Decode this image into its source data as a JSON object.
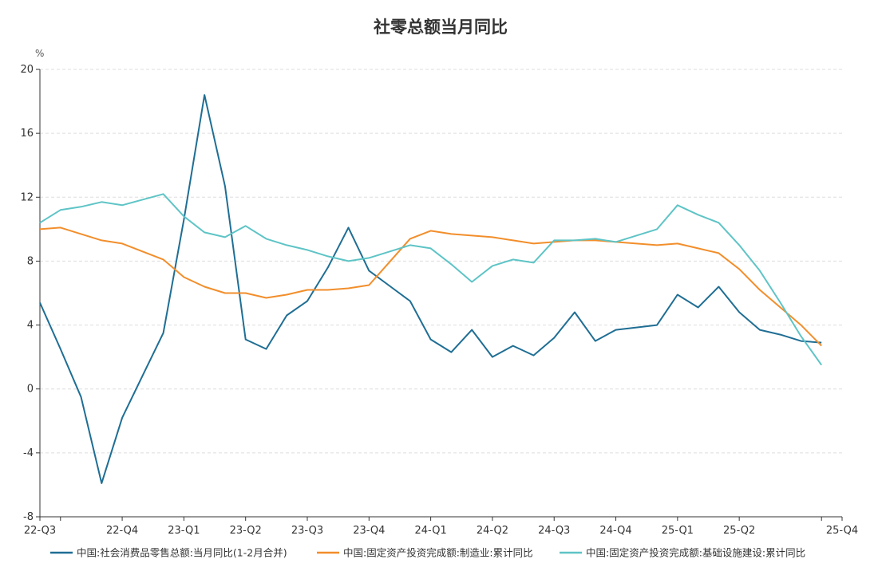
{
  "chart_data": {
    "type": "line",
    "title": "社零总额当月同比",
    "ylabel": "%",
    "xlabel": "",
    "ylim": [
      -8,
      20
    ],
    "yticks": [
      20,
      16,
      12,
      8,
      4,
      0,
      -4,
      -8
    ],
    "grid": true,
    "legend_position": "bottom",
    "x": [
      "2022-08",
      "2022-09",
      "2022-10",
      "2022-11",
      "2022-12",
      "2023-01",
      "2023-02",
      "2023-03",
      "2023-04",
      "2023-05",
      "2023-06",
      "2023-07",
      "2023-08",
      "2023-09",
      "2023-10",
      "2023-11",
      "2023-12",
      "2024-01",
      "2024-02",
      "2024-03",
      "2024-04",
      "2024-05",
      "2024-06",
      "2024-07",
      "2024-08",
      "2024-09",
      "2024-10",
      "2024-11",
      "2024-12",
      "2025-01",
      "2025-02",
      "2025-03",
      "2025-04",
      "2025-05",
      "2025-06",
      "2025-07",
      "2025-08",
      "2025-09",
      "2025-10",
      "2025-11"
    ],
    "xtick_labels": [
      {
        "label": "22-Q3",
        "x": "2022-08"
      },
      {
        "label": "22-Q4",
        "x": "2022-12"
      },
      {
        "label": "23-Q1",
        "x": "2023-03"
      },
      {
        "label": "23-Q2",
        "x": "2023-06"
      },
      {
        "label": "23-Q3",
        "x": "2023-09"
      },
      {
        "label": "23-Q4",
        "x": "2023-12"
      },
      {
        "label": "24-Q1",
        "x": "2024-03"
      },
      {
        "label": "24-Q2",
        "x": "2024-06"
      },
      {
        "label": "24-Q3",
        "x": "2024-09"
      },
      {
        "label": "24-Q4",
        "x": "2024-12"
      },
      {
        "label": "25-Q1",
        "x": "2025-03"
      },
      {
        "label": "25-Q2",
        "x": "2025-06"
      },
      {
        "label": "25-Q4",
        "x": "2025-11"
      }
    ],
    "minor_ticks": [
      "2022-09",
      "2025-10"
    ],
    "series": [
      {
        "name": "中国:社会消费品零售总额:当月同比(1-2月合并)",
        "color": "#1f6e94",
        "values": [
          5.4,
          2.5,
          -0.5,
          -5.9,
          -1.8,
          null,
          3.5,
          10.6,
          18.4,
          12.7,
          3.1,
          2.5,
          4.6,
          5.5,
          7.6,
          10.1,
          7.4,
          null,
          5.5,
          3.1,
          2.3,
          3.7,
          2.0,
          2.7,
          2.1,
          3.2,
          4.8,
          3.0,
          3.7,
          null,
          4.0,
          5.9,
          5.1,
          6.4,
          4.8,
          3.7,
          3.4,
          3.0,
          2.9,
          null
        ]
      },
      {
        "name": "中国:固定资产投资完成额:制造业:累计同比",
        "color": "#f28e2b",
        "values": [
          10.0,
          10.1,
          9.7,
          9.3,
          9.1,
          null,
          8.1,
          7.0,
          6.4,
          6.0,
          6.0,
          5.7,
          5.9,
          6.2,
          6.2,
          6.3,
          6.5,
          null,
          9.4,
          9.9,
          9.7,
          9.6,
          9.5,
          9.3,
          9.1,
          9.2,
          9.3,
          9.3,
          9.2,
          null,
          9.0,
          9.1,
          8.8,
          8.5,
          7.5,
          6.2,
          5.1,
          4.0,
          2.7,
          null
        ]
      },
      {
        "name": "中国:固定资产投资完成额:基础设施建设:累计同比",
        "color": "#5ec4c6",
        "values": [
          10.4,
          11.2,
          11.4,
          11.7,
          11.5,
          null,
          12.2,
          10.8,
          9.8,
          9.5,
          10.2,
          9.4,
          9.0,
          8.7,
          8.3,
          8.0,
          8.2,
          null,
          9.0,
          8.8,
          7.8,
          6.7,
          7.7,
          8.1,
          7.9,
          9.3,
          9.3,
          9.4,
          9.2,
          null,
          10.0,
          11.5,
          10.9,
          10.4,
          9.0,
          7.4,
          5.4,
          3.3,
          1.5,
          null
        ]
      }
    ]
  }
}
